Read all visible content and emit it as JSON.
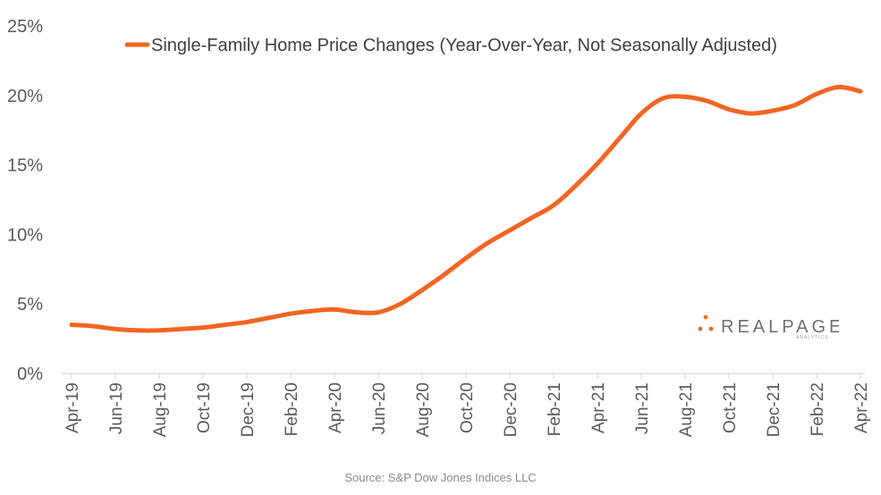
{
  "chart_data": {
    "type": "line",
    "x": [
      "Apr-19",
      "May-19",
      "Jun-19",
      "Jul-19",
      "Aug-19",
      "Sep-19",
      "Oct-19",
      "Nov-19",
      "Dec-19",
      "Jan-20",
      "Feb-20",
      "Mar-20",
      "Apr-20",
      "May-20",
      "Jun-20",
      "Jul-20",
      "Aug-20",
      "Sep-20",
      "Oct-20",
      "Nov-20",
      "Dec-20",
      "Jan-21",
      "Feb-21",
      "Mar-21",
      "Apr-21",
      "May-21",
      "Jun-21",
      "Jul-21",
      "Aug-21",
      "Sep-21",
      "Oct-21",
      "Nov-21",
      "Dec-21",
      "Jan-22",
      "Feb-22",
      "Mar-22",
      "Apr-22"
    ],
    "tick_labels": [
      "Apr-19",
      "Jun-19",
      "Aug-19",
      "Oct-19",
      "Dec-19",
      "Feb-20",
      "Apr-20",
      "Jun-20",
      "Aug-20",
      "Oct-20",
      "Dec-20",
      "Feb-21",
      "Apr-21",
      "Jun-21",
      "Aug-21",
      "Oct-21",
      "Dec-21",
      "Feb-22",
      "Apr-22"
    ],
    "series": [
      {
        "name": "Single-Family Home Price Changes (Year-Over-Year, Not Seasonally Adjusted)",
        "color": "#f26522",
        "values": [
          3.5,
          3.4,
          3.2,
          3.1,
          3.1,
          3.2,
          3.3,
          3.5,
          3.7,
          4.0,
          4.3,
          4.5,
          4.6,
          4.4,
          4.4,
          5.0,
          6.0,
          7.1,
          8.3,
          9.4,
          10.3,
          11.2,
          12.1,
          13.5,
          15.1,
          16.9,
          18.7,
          19.8,
          19.9,
          19.6,
          19.0,
          18.7,
          18.9,
          19.3,
          20.1,
          20.6,
          20.3
        ]
      }
    ],
    "yticks": [
      "0%",
      "5%",
      "10%",
      "15%",
      "20%",
      "25%"
    ],
    "ylim": [
      0,
      25
    ],
    "grid": false,
    "legend_position": "top"
  },
  "source": "Source: S&P Dow Jones Indices LLC",
  "logo": {
    "text": "REALPAGE",
    "subtext": "ANALYTICS",
    "colors": [
      "#f26522",
      "#6d6e71"
    ]
  }
}
